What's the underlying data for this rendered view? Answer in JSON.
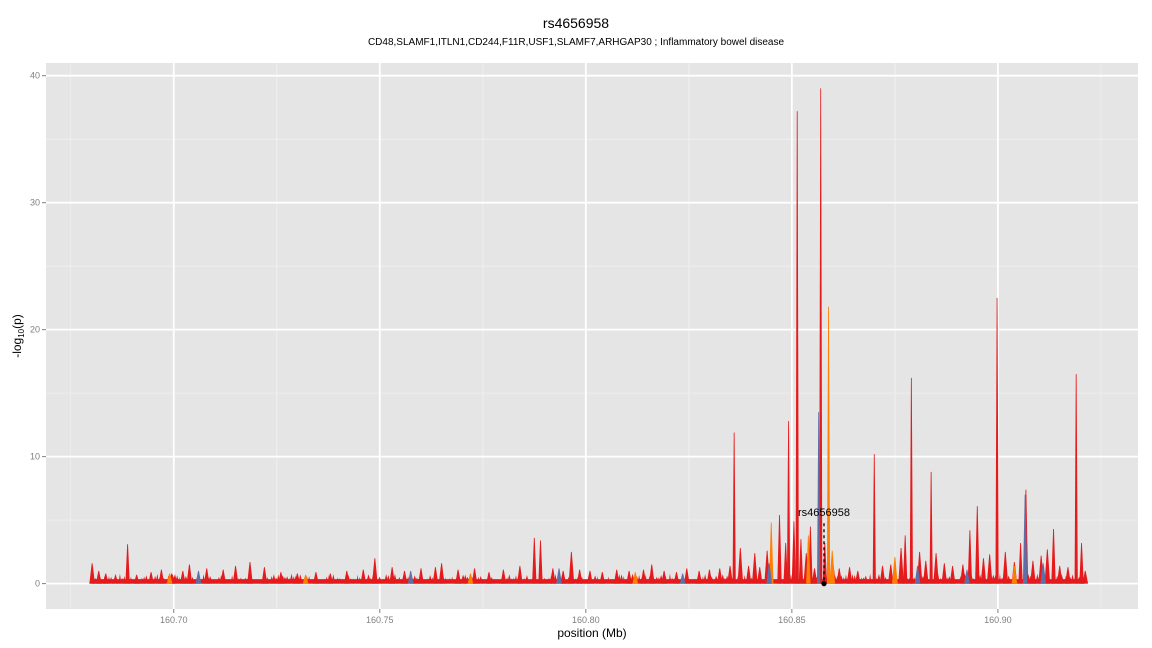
{
  "chart_data": {
    "type": "area",
    "title": "rs4656958",
    "subtitle": "CD48,SLAMF1,ITLN1,CD244,F11R,USF1,SLAMF7,ARHGAP30 ; Inflammatory bowel disease",
    "xlabel": "position (Mb)",
    "ylabel_main": "-log",
    "ylabel_sub": "10",
    "ylabel_tail": "(p)",
    "xlim": [
      160.669,
      160.934
    ],
    "ylim": [
      -2,
      41
    ],
    "x_ticks": [
      160.7,
      160.75,
      160.8,
      160.85,
      160.9
    ],
    "x_tick_labels": [
      "160.70",
      "160.75",
      "160.80",
      "160.85",
      "160.90"
    ],
    "y_ticks": [
      0,
      10,
      20,
      30,
      40
    ],
    "y_tick_labels": [
      "0",
      "10",
      "20",
      "30",
      "40"
    ],
    "grid": true,
    "colors": {
      "panel": "#e5e5e5",
      "grid_major": "#ffffff",
      "grid_minor": "#f0f0f0",
      "red": "#e41a1c",
      "orange": "#ff7f00",
      "blue": "#5e6fa8"
    },
    "x_range_data": [
      160.68,
      160.921
    ],
    "series": [
      {
        "color_key": "red",
        "peaks": [
          [
            160.6802,
            1.6
          ],
          [
            160.6818,
            1.0
          ],
          [
            160.6835,
            0.8
          ],
          [
            160.6888,
            3.1
          ],
          [
            160.691,
            0.7
          ],
          [
            160.6945,
            0.9
          ],
          [
            160.697,
            1.1
          ],
          [
            160.6995,
            0.8
          ],
          [
            160.7022,
            1.0
          ],
          [
            160.7038,
            1.5
          ],
          [
            160.708,
            1.2
          ],
          [
            160.712,
            1.1
          ],
          [
            160.715,
            1.4
          ],
          [
            160.7185,
            1.7
          ],
          [
            160.722,
            1.3
          ],
          [
            160.726,
            0.9
          ],
          [
            160.73,
            0.8
          ],
          [
            160.7345,
            0.9
          ],
          [
            160.738,
            0.8
          ],
          [
            160.742,
            1.0
          ],
          [
            160.746,
            1.1
          ],
          [
            160.7488,
            2.0
          ],
          [
            160.753,
            1.3
          ],
          [
            160.756,
            1.0
          ],
          [
            160.76,
            1.2
          ],
          [
            160.7635,
            1.3
          ],
          [
            160.765,
            1.6
          ],
          [
            160.769,
            1.1
          ],
          [
            160.773,
            1.2
          ],
          [
            160.7765,
            0.9
          ],
          [
            160.78,
            1.1
          ],
          [
            160.784,
            1.4
          ],
          [
            160.7875,
            3.6
          ],
          [
            160.789,
            3.4
          ],
          [
            160.792,
            1.2
          ],
          [
            160.7945,
            1.0
          ],
          [
            160.7965,
            2.5
          ],
          [
            160.7985,
            1.1
          ],
          [
            160.801,
            1.0
          ],
          [
            160.804,
            0.9
          ],
          [
            160.8075,
            1.1
          ],
          [
            160.8105,
            1.0
          ],
          [
            160.814,
            1.1
          ],
          [
            160.816,
            1.5
          ],
          [
            160.819,
            1.0
          ],
          [
            160.822,
            0.9
          ],
          [
            160.8245,
            1.2
          ],
          [
            160.8275,
            1.0
          ],
          [
            160.83,
            1.1
          ],
          [
            160.8325,
            1.2
          ],
          [
            160.835,
            1.4
          ],
          [
            160.836,
            11.9
          ],
          [
            160.8375,
            2.8
          ],
          [
            160.8395,
            1.4
          ],
          [
            160.841,
            2.4
          ],
          [
            160.8422,
            1.3
          ],
          [
            160.844,
            2.6
          ],
          [
            160.847,
            5.4
          ],
          [
            160.8485,
            3.2
          ],
          [
            160.8492,
            12.8
          ],
          [
            160.8505,
            4.9
          ],
          [
            160.8513,
            37.2
          ],
          [
            160.8522,
            3.5
          ],
          [
            160.8535,
            2.4
          ],
          [
            160.8545,
            4.5
          ],
          [
            160.8555,
            1.2
          ],
          [
            160.857,
            39.0
          ],
          [
            160.858,
            3.2
          ],
          [
            160.86,
            1.5
          ],
          [
            160.8615,
            1.2
          ],
          [
            160.864,
            1.3
          ],
          [
            160.866,
            1.0
          ],
          [
            160.87,
            10.2
          ],
          [
            160.872,
            1.4
          ],
          [
            160.874,
            1.5
          ],
          [
            160.8765,
            2.8
          ],
          [
            160.8775,
            3.8
          ],
          [
            160.879,
            16.2
          ],
          [
            160.881,
            2.5
          ],
          [
            160.8825,
            1.8
          ],
          [
            160.8838,
            8.8
          ],
          [
            160.885,
            2.4
          ],
          [
            160.887,
            1.6
          ],
          [
            160.889,
            1.4
          ],
          [
            160.8915,
            1.5
          ],
          [
            160.8932,
            4.2
          ],
          [
            160.895,
            6.1
          ],
          [
            160.8965,
            2.0
          ],
          [
            160.898,
            2.3
          ],
          [
            160.8998,
            22.5
          ],
          [
            160.9018,
            2.5
          ],
          [
            160.904,
            1.7
          ],
          [
            160.9055,
            3.2
          ],
          [
            160.9068,
            7.4
          ],
          [
            160.9085,
            1.8
          ],
          [
            160.9105,
            2.2
          ],
          [
            160.912,
            2.7
          ],
          [
            160.9135,
            4.3
          ],
          [
            160.915,
            1.4
          ],
          [
            160.917,
            1.3
          ],
          [
            160.919,
            16.5
          ],
          [
            160.9203,
            3.2
          ],
          [
            160.9212,
            1.0
          ]
        ]
      },
      {
        "color_key": "orange",
        "peaks": [
          [
            160.699,
            0.8
          ],
          [
            160.732,
            0.7
          ],
          [
            160.772,
            0.8
          ],
          [
            160.812,
            0.9
          ],
          [
            160.845,
            4.8
          ],
          [
            160.854,
            3.8
          ],
          [
            160.8589,
            21.8
          ],
          [
            160.8598,
            2.6
          ],
          [
            160.875,
            2.1
          ],
          [
            160.904,
            1.4
          ]
        ]
      },
      {
        "color_key": "blue",
        "peaks": [
          [
            160.706,
            1.0
          ],
          [
            160.7575,
            1.0
          ],
          [
            160.7935,
            1.2
          ],
          [
            160.8235,
            0.8
          ],
          [
            160.8445,
            1.6
          ],
          [
            160.8565,
            13.5
          ],
          [
            160.8805,
            1.4
          ],
          [
            160.8925,
            1.1
          ],
          [
            160.9066,
            7.0
          ],
          [
            160.911,
            1.6
          ]
        ]
      }
    ],
    "annotation": {
      "label": "rs4656958",
      "x": 160.8578,
      "y_top": 4.6,
      "y_point": 0
    }
  }
}
